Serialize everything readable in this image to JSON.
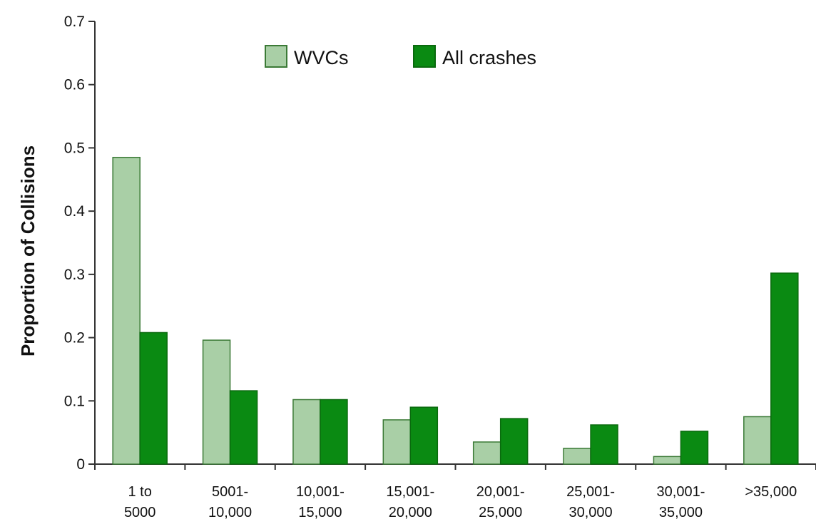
{
  "chart_data": {
    "type": "bar",
    "title": "",
    "xlabel": "",
    "ylabel": "Proportion of Collisions",
    "ylim": [
      0,
      0.7
    ],
    "yticks": [
      "0",
      "0.1",
      "0.2",
      "0.3",
      "0.4",
      "0.5",
      "0.6",
      "0.7"
    ],
    "categories": [
      [
        "1 to",
        "5000"
      ],
      [
        "5001-",
        "10,000"
      ],
      [
        "10,001-",
        "15,000"
      ],
      [
        "15,001-",
        "20,000"
      ],
      [
        "20,001-",
        "25,000"
      ],
      [
        "25,001-",
        "30,000"
      ],
      [
        "30,001-",
        "35,000"
      ],
      [
        ">35,000"
      ]
    ],
    "series": [
      {
        "name": "WVCs",
        "color": "#a9cfa6",
        "stroke": "#3b7a36",
        "values": [
          0.485,
          0.196,
          0.102,
          0.07,
          0.035,
          0.025,
          0.012,
          0.075
        ]
      },
      {
        "name": "All crashes",
        "color": "#0a8a12",
        "stroke": "#0a6a0e",
        "values": [
          0.208,
          0.116,
          0.102,
          0.09,
          0.072,
          0.062,
          0.052,
          0.302
        ]
      }
    ],
    "grid": false,
    "legend": "top-center"
  }
}
